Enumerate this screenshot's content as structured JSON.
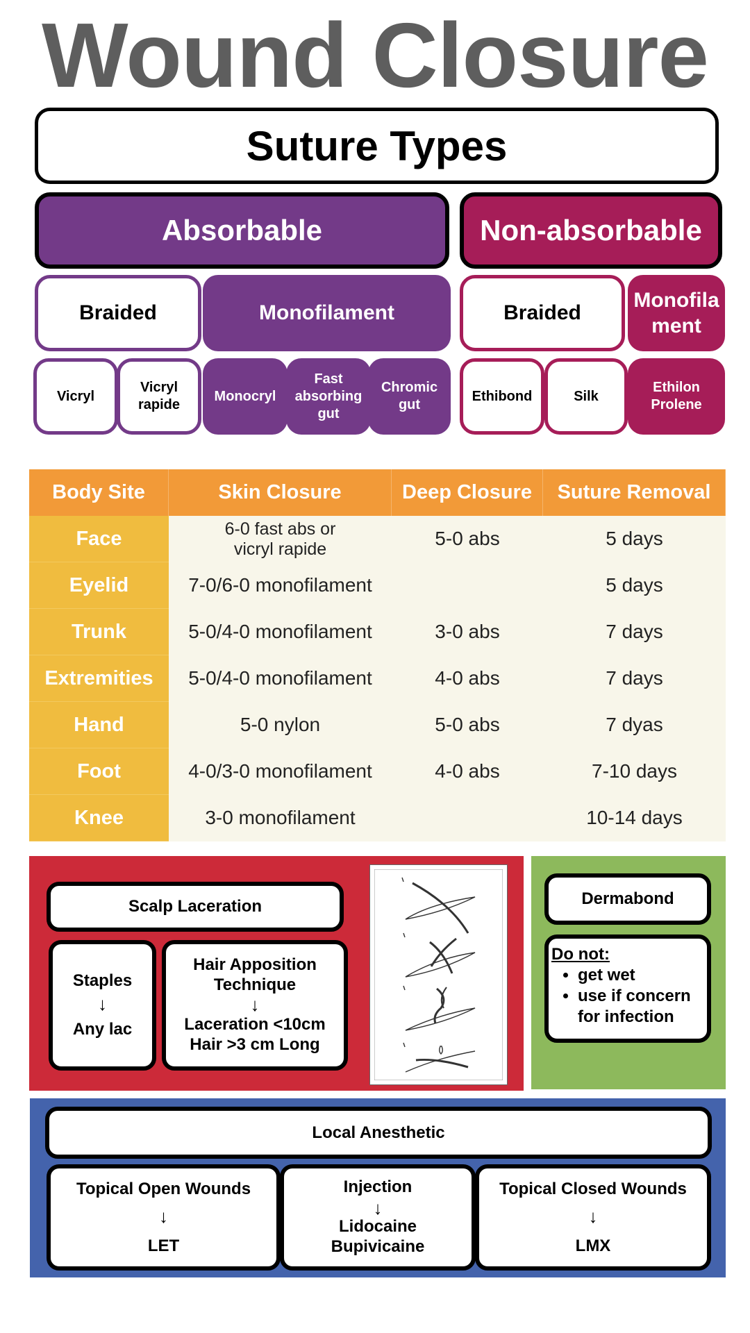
{
  "title": "Wound Closure",
  "suture_types": {
    "title": "Suture Types",
    "absorbable": {
      "label": "Absorbable",
      "braided": {
        "label": "Braided",
        "items": [
          "Vicryl",
          "Vicryl rapide"
        ]
      },
      "monofilament": {
        "label": "Monofilament",
        "items": [
          "Monocryl",
          "Fast absorbing gut",
          "Chromic gut"
        ]
      }
    },
    "non_absorbable": {
      "label": "Non-absorbable",
      "braided": {
        "label": "Braided",
        "items": [
          "Ethibond",
          "Silk"
        ]
      },
      "monofilament": {
        "label": "Monofilament",
        "items": [
          "Ethilon Prolene"
        ]
      }
    },
    "colors": {
      "absorbable": "#733a88",
      "non_absorbable": "#a61d58"
    }
  },
  "table": {
    "headers": [
      "Body Site",
      "Skin Closure",
      "Deep Closure",
      "Suture Removal"
    ],
    "rows": [
      {
        "site": "Face",
        "skin": "6-0 fast abs or vicryl rapide",
        "deep": "5-0 abs",
        "removal": "5 days"
      },
      {
        "site": "Eyelid",
        "skin": "7-0/6-0 monofilament",
        "deep": "",
        "removal": "5 days"
      },
      {
        "site": "Trunk",
        "skin": "5-0/4-0 monofilament",
        "deep": "3-0 abs",
        "removal": "7 days"
      },
      {
        "site": "Extremities",
        "skin": "5-0/4-0 monofilament",
        "deep": "4-0 abs",
        "removal": "7 days"
      },
      {
        "site": "Hand",
        "skin": "5-0 nylon",
        "deep": "5-0 abs",
        "removal": "7 dyas"
      },
      {
        "site": "Foot",
        "skin": "4-0/3-0 monofilament",
        "deep": "4-0 abs",
        "removal": "7-10 days"
      },
      {
        "site": "Knee",
        "skin": "3-0 monofilament",
        "deep": "",
        "removal": "10-14 days"
      }
    ],
    "colors": {
      "header": "#f29a38",
      "site_column": "#f0bc3f",
      "body": "#f8f6ea"
    }
  },
  "scalp": {
    "title": "Scalp Laceration",
    "staples": {
      "label": "Staples",
      "result": "Any lac"
    },
    "hair": {
      "label": "Hair Apposition Technique",
      "criteria": [
        "Laceration <10cm",
        "Hair >3 cm Long"
      ]
    },
    "color": "#cc2a39"
  },
  "dermabond": {
    "title": "Dermabond",
    "do_not_label": "Do not:",
    "items": [
      "get wet",
      "use if concern for infection"
    ],
    "color": "#8db95c"
  },
  "anesthetic": {
    "title": "Local Anesthetic",
    "topical_open": {
      "label": "Topical Open Wounds",
      "agent": "LET"
    },
    "injection": {
      "label": "Injection",
      "agents": [
        "Lidocaine",
        "Bupivicaine"
      ]
    },
    "topical_closed": {
      "label": "Topical Closed Wounds",
      "agent": "LMX"
    },
    "color": "#4463ac"
  }
}
